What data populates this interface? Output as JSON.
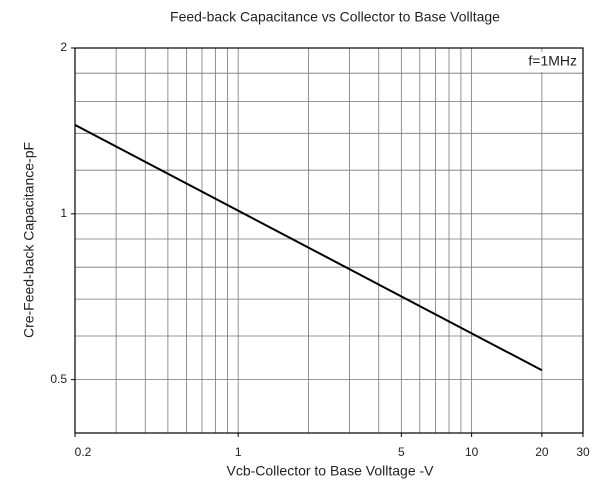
{
  "chart_data": {
    "type": "line",
    "title": "Feed-back Capacitance vs Collector to Base Volltage",
    "x_label": "Vcb-Collector to Base Volltage -V",
    "y_label": "Cre-Feed-back Capacitance-pF",
    "annotation": "f=1MHz",
    "x": [
      0.2,
      20
    ],
    "series": [
      {
        "name": "Cre",
        "color": "#000000",
        "values": [
          1.45,
          0.52
        ]
      }
    ],
    "xlim": [
      0.2,
      30
    ],
    "ylim": [
      0.4,
      2
    ],
    "xticks": [
      0.2,
      1,
      5,
      10,
      20,
      30
    ],
    "yticks": [
      0.5,
      1,
      2
    ],
    "xgrid": [
      0.3,
      0.4,
      0.5,
      0.6,
      0.7,
      0.8,
      0.9,
      1,
      2,
      3,
      4,
      5,
      6,
      7,
      8,
      9,
      10,
      20
    ],
    "ygrid": [
      0.5,
      0.6,
      0.7,
      0.8,
      0.9,
      1,
      1.2,
      1.4,
      1.6,
      1.8
    ],
    "log_x": true,
    "log_y": true,
    "grid": true
  }
}
